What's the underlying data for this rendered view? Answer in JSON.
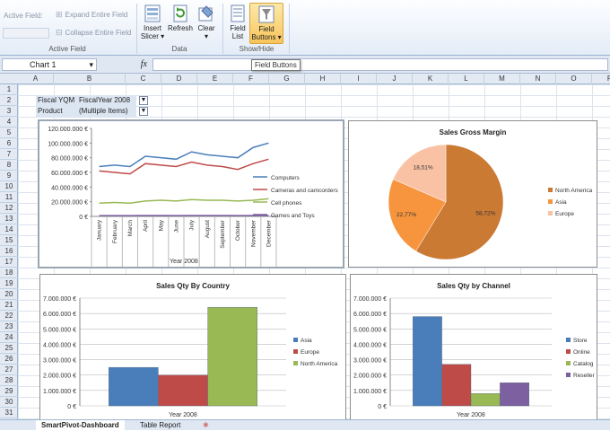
{
  "ribbon": {
    "active_field_label": "Active Field:",
    "expand_label": "Expand Entire Field",
    "collapse_label": "Collapse Entire Field",
    "group_active_field": "Active Field",
    "insert_slicer_line1": "Insert",
    "insert_slicer_line2": "Slicer ▾",
    "refresh_label": "Refresh",
    "clear_label": "Clear",
    "group_data": "Data",
    "field_list_line1": "Field",
    "field_list_line2": "List",
    "field_buttons_line1": "Field",
    "field_buttons_line2": "Buttons ▾",
    "group_showhide": "Show/Hide"
  },
  "formula_bar": {
    "name_box": "Chart 1",
    "fx": "fx",
    "value": ""
  },
  "tooltip": "Field Buttons",
  "columns": [
    "A",
    "B",
    "C",
    "D",
    "E",
    "F",
    "G",
    "H",
    "I",
    "J",
    "K",
    "L",
    "M",
    "N",
    "O",
    "P"
  ],
  "rows": [
    "1",
    "2",
    "3",
    "4",
    "5",
    "6",
    "7",
    "8",
    "9",
    "10",
    "11",
    "12",
    "13",
    "14",
    "15",
    "16",
    "17",
    "18",
    "19",
    "20",
    "21",
    "22",
    "23",
    "24",
    "25",
    "26",
    "27",
    "28",
    "29",
    "30",
    "31"
  ],
  "pivot_filters": [
    {
      "label": "Fiscal YQM",
      "value": "FiscalYear 2008"
    },
    {
      "label": "Product",
      "value": "(Multiple Items)"
    }
  ],
  "chart_data": [
    {
      "type": "line",
      "title": "",
      "xlabel": "Year 2008",
      "ylabel": "",
      "categories": [
        "January",
        "February",
        "March",
        "April",
        "May",
        "June",
        "July",
        "August",
        "September",
        "October",
        "November",
        "December"
      ],
      "y_ticks": [
        "0 €",
        "20.000.000 €",
        "40.000.000 €",
        "60.000.000 €",
        "80.000.000 €",
        "100.000.000 €",
        "120.000.000 €"
      ],
      "ylim": [
        0,
        120000000
      ],
      "series": [
        {
          "name": "Computers",
          "color": "#4a7ebb",
          "values": [
            68000000,
            70000000,
            68000000,
            82000000,
            80000000,
            78000000,
            88000000,
            84000000,
            82000000,
            80000000,
            94000000,
            100000000
          ]
        },
        {
          "name": "Cameras and camcorders",
          "color": "#be4b48",
          "values": [
            62000000,
            60000000,
            58000000,
            72000000,
            70000000,
            68000000,
            74000000,
            70000000,
            68000000,
            64000000,
            72000000,
            78000000
          ]
        },
        {
          "name": "Cell phones",
          "color": "#98b954",
          "values": [
            18000000,
            19000000,
            18000000,
            21000000,
            22000000,
            21000000,
            23000000,
            22000000,
            22000000,
            21000000,
            22000000,
            24000000
          ]
        },
        {
          "name": "Games and Toys",
          "color": "#7d60a0",
          "values": [
            1000000,
            1000000,
            1000000,
            1200000,
            1200000,
            1100000,
            1300000,
            1200000,
            1200000,
            1100000,
            1200000,
            1300000
          ]
        }
      ]
    },
    {
      "type": "pie",
      "title": "Sales Gross Margin",
      "categories": [
        "North America",
        "Asia",
        "Europe"
      ],
      "values": [
        58.72,
        22.77,
        18.51
      ],
      "labels": [
        "58,72%",
        "22,77%",
        "18,51%"
      ],
      "colors": [
        "#cb7a34",
        "#f7953e",
        "#f9c2a4"
      ]
    },
    {
      "type": "bar",
      "title": "Sales Qty By Country",
      "xlabel": "Year 2008",
      "y_ticks": [
        "0 €",
        "1.000.000 €",
        "2.000.000 €",
        "3.000.000 €",
        "4.000.000 €",
        "5.000.000 €",
        "6.000.000 €",
        "7.000.000 €"
      ],
      "ylim": [
        0,
        7000000
      ],
      "series": [
        {
          "name": "Asia",
          "color": "#4a7ebb",
          "values": [
            2500000
          ]
        },
        {
          "name": "Europe",
          "color": "#be4b48",
          "values": [
            2000000
          ]
        },
        {
          "name": "North America",
          "color": "#98b954",
          "values": [
            6400000
          ]
        }
      ]
    },
    {
      "type": "bar",
      "title": "Sales Qty by Channel",
      "xlabel": "Year 2008",
      "y_ticks": [
        "0 €",
        "1.000.000 €",
        "2.000.000 €",
        "3.000.000 €",
        "4.000.000 €",
        "5.000.000 €",
        "6.000.000 €",
        "7.000.000 €"
      ],
      "ylim": [
        0,
        7000000
      ],
      "series": [
        {
          "name": "Store",
          "color": "#4a7ebb",
          "values": [
            5800000
          ]
        },
        {
          "name": "Online",
          "color": "#be4b48",
          "values": [
            2700000
          ]
        },
        {
          "name": "Catalog",
          "color": "#98b954",
          "values": [
            800000
          ]
        },
        {
          "name": "Reseller",
          "color": "#7d60a0",
          "values": [
            1500000
          ]
        }
      ]
    }
  ],
  "sheet_tabs": [
    "SmartPivot-Dashboard",
    "Table Report"
  ]
}
